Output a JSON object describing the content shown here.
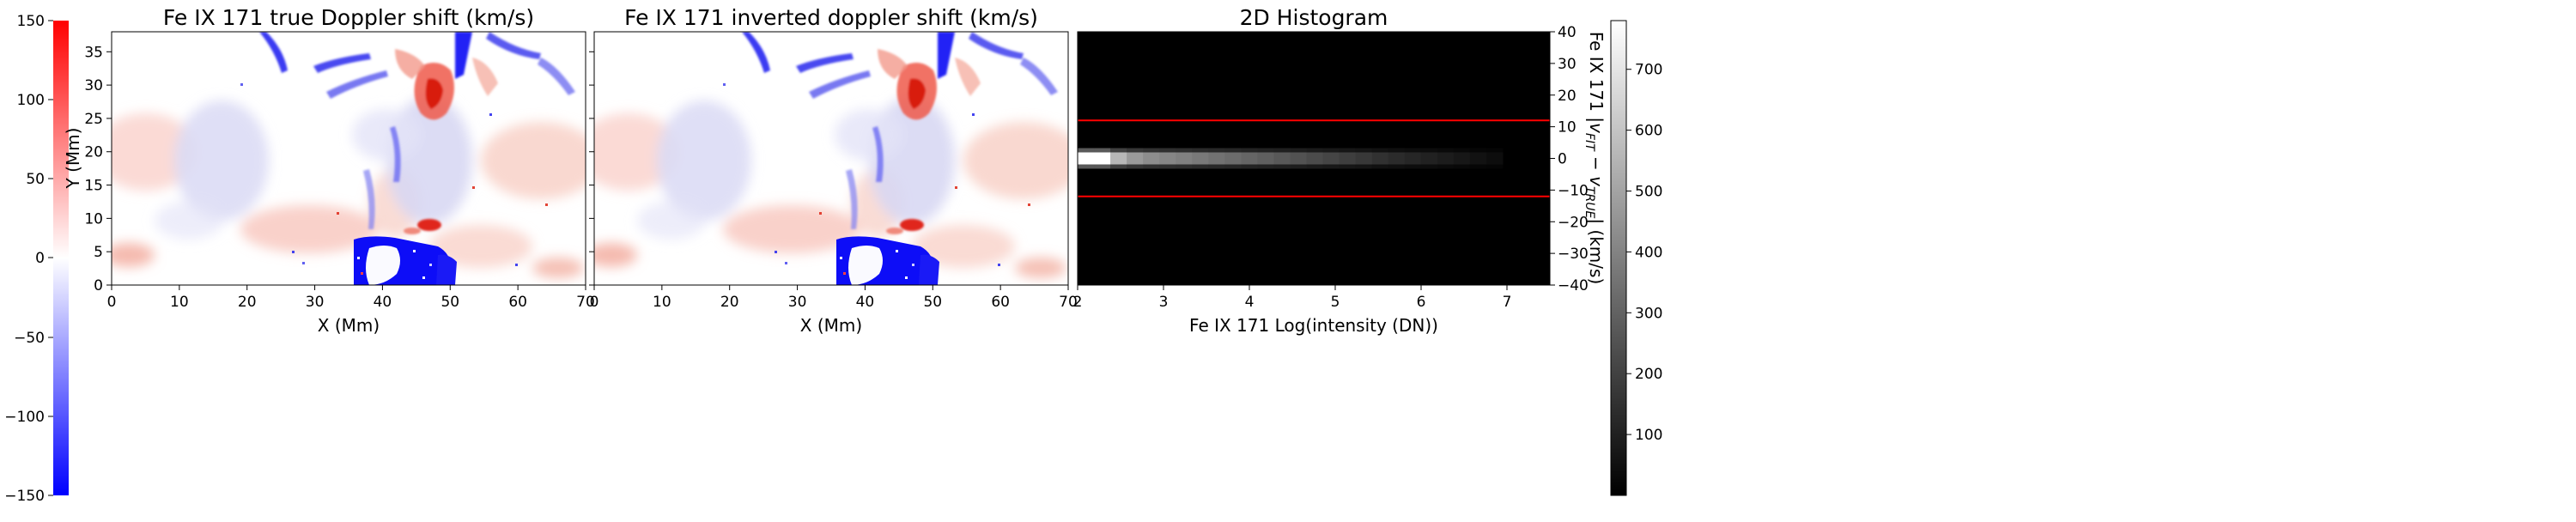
{
  "chart_data": [
    {
      "type": "heatmap",
      "title": "Fe IX 171  true Doppler shift (km/s)",
      "xlabel": "X (Mm)",
      "ylabel": "Y (Mm)",
      "xlim": [
        0,
        70
      ],
      "ylim": [
        0,
        38
      ],
      "xticks": [
        "0",
        "10",
        "20",
        "30",
        "40",
        "50",
        "60",
        "70"
      ],
      "yticks": [
        "0",
        "5",
        "10",
        "15",
        "20",
        "25",
        "30",
        "35"
      ],
      "colormap": "bwr",
      "colors": {
        "negative": "#0000ff",
        "zero": "#ffffff",
        "positive": "#ff0000"
      }
    },
    {
      "type": "heatmap",
      "title": "Fe IX 171  inverted doppler shift (km/s)",
      "xlabel": "X (Mm)",
      "xlim": [
        0,
        70
      ],
      "ylim": [
        0,
        38
      ],
      "xticks": [
        "0",
        "10",
        "20",
        "30",
        "40",
        "50",
        "60",
        "70"
      ],
      "colormap": "bwr",
      "colors": {
        "negative": "#0000ff",
        "zero": "#ffffff",
        "positive": "#ff0000"
      }
    },
    {
      "type": "heatmap",
      "title": "2D Histogram",
      "xlabel": "Fe IX 171 Log(intensity (DN))",
      "ylabel": "Fe IX 171  |v_FIT − v_TRUE| (km/s)",
      "ylabel_parts": {
        "lead": "Fe IX 171  |",
        "v": "v",
        "sub1": "FIT",
        "minus": " − ",
        "sub2": "TRUE",
        "tail": "| (km/s)"
      },
      "xlim": [
        2,
        7.5
      ],
      "ylim": [
        -40,
        40
      ],
      "xticks": [
        "2",
        "3",
        "4",
        "5",
        "6",
        "7"
      ],
      "yticks": [
        "40",
        "30",
        "20",
        "10",
        "0",
        "−10",
        "−20",
        "−30",
        "−40"
      ],
      "band_center_y": 0,
      "band_values": [
        780,
        780,
        560,
        470,
        430,
        410,
        390,
        370,
        350,
        330,
        310,
        290,
        270,
        250,
        230,
        210,
        190,
        170,
        150,
        130,
        115,
        100,
        85,
        70,
        55,
        40
      ],
      "reference_lines_y": [
        12,
        -12
      ],
      "colors": {
        "reference_line": "#ff0000",
        "background": "#000000"
      }
    }
  ],
  "colorbars": [
    {
      "position": "left",
      "range": [
        -150,
        150
      ],
      "ticks": [
        "150",
        "100",
        "50",
        "0",
        "−50",
        "−100",
        "−150"
      ],
      "colormap": "bwr"
    },
    {
      "position": "right",
      "range": [
        0,
        780
      ],
      "ticks": [
        "700",
        "600",
        "500",
        "400",
        "300",
        "200",
        "100"
      ],
      "colormap": "gray"
    }
  ]
}
